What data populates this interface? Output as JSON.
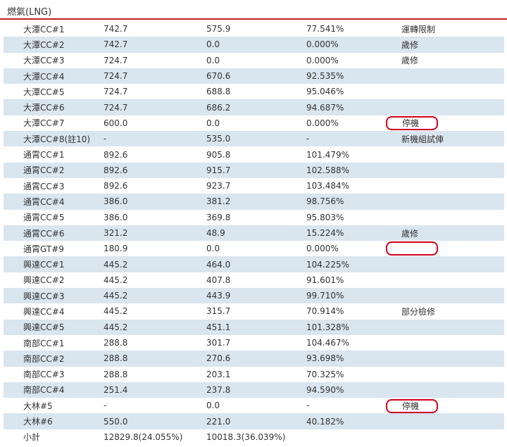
{
  "section_title": "燃氣(LNG)",
  "accent_color": "#c41e24",
  "alt_row_color": "#d9e5ef",
  "highlight_color": "#d0021b",
  "rows": [
    {
      "unit": "大潭CC#1",
      "capacity": "742.7",
      "output": "575.9",
      "ratio": "77.541%",
      "note": "運轉限制",
      "highlight": false
    },
    {
      "unit": "大潭CC#2",
      "capacity": "742.7",
      "output": "0.0",
      "ratio": "0.000%",
      "note": "歲修",
      "highlight": false
    },
    {
      "unit": "大潭CC#3",
      "capacity": "724.7",
      "output": "0.0",
      "ratio": "0.000%",
      "note": "歲修",
      "highlight": false
    },
    {
      "unit": "大潭CC#4",
      "capacity": "724.7",
      "output": "670.6",
      "ratio": "92.535%",
      "note": "",
      "highlight": false
    },
    {
      "unit": "大潭CC#5",
      "capacity": "724.7",
      "output": "688.8",
      "ratio": "95.046%",
      "note": "",
      "highlight": false
    },
    {
      "unit": "大潭CC#6",
      "capacity": "724.7",
      "output": "686.2",
      "ratio": "94.687%",
      "note": "",
      "highlight": false
    },
    {
      "unit": "大潭CC#7",
      "capacity": "600.0",
      "output": "0.0",
      "ratio": "0.000%",
      "note": "停機",
      "highlight": true
    },
    {
      "unit": "大潭CC#8(註10)",
      "capacity": "-",
      "output": "535.0",
      "ratio": "-",
      "note": "新機組試俥",
      "highlight": false
    },
    {
      "unit": "通霄CC#1",
      "capacity": "892.6",
      "output": "905.8",
      "ratio": "101.479%",
      "note": "",
      "highlight": false
    },
    {
      "unit": "通霄CC#2",
      "capacity": "892.6",
      "output": "915.7",
      "ratio": "102.588%",
      "note": "",
      "highlight": false
    },
    {
      "unit": "通霄CC#3",
      "capacity": "892.6",
      "output": "923.7",
      "ratio": "103.484%",
      "note": "",
      "highlight": false
    },
    {
      "unit": "通霄CC#4",
      "capacity": "386.0",
      "output": "381.2",
      "ratio": "98.756%",
      "note": "",
      "highlight": false
    },
    {
      "unit": "通霄CC#5",
      "capacity": "386.0",
      "output": "369.8",
      "ratio": "95.803%",
      "note": "",
      "highlight": false
    },
    {
      "unit": "通霄CC#6",
      "capacity": "321.2",
      "output": "48.9",
      "ratio": "15.224%",
      "note": "歲修",
      "highlight": false
    },
    {
      "unit": "通霄GT#9",
      "capacity": "180.9",
      "output": "0.0",
      "ratio": "0.000%",
      "note": "",
      "highlight": true
    },
    {
      "unit": "興達CC#1",
      "capacity": "445.2",
      "output": "464.0",
      "ratio": "104.225%",
      "note": "",
      "highlight": false
    },
    {
      "unit": "興達CC#2",
      "capacity": "445.2",
      "output": "407.8",
      "ratio": "91.601%",
      "note": "",
      "highlight": false
    },
    {
      "unit": "興達CC#3",
      "capacity": "445.2",
      "output": "443.9",
      "ratio": "99.710%",
      "note": "",
      "highlight": false
    },
    {
      "unit": "興達CC#4",
      "capacity": "445.2",
      "output": "315.7",
      "ratio": "70.914%",
      "note": "部分檢修",
      "highlight": false
    },
    {
      "unit": "興達CC#5",
      "capacity": "445.2",
      "output": "451.1",
      "ratio": "101.328%",
      "note": "",
      "highlight": false
    },
    {
      "unit": "南部CC#1",
      "capacity": "288.8",
      "output": "301.7",
      "ratio": "104.467%",
      "note": "",
      "highlight": false
    },
    {
      "unit": "南部CC#2",
      "capacity": "288.8",
      "output": "270.6",
      "ratio": "93.698%",
      "note": "",
      "highlight": false
    },
    {
      "unit": "南部CC#3",
      "capacity": "288.8",
      "output": "203.1",
      "ratio": "70.325%",
      "note": "",
      "highlight": false
    },
    {
      "unit": "南部CC#4",
      "capacity": "251.4",
      "output": "237.8",
      "ratio": "94.590%",
      "note": "",
      "highlight": false
    },
    {
      "unit": "大林#5",
      "capacity": "-",
      "output": "0.0",
      "ratio": "-",
      "note": "停機",
      "highlight": true
    },
    {
      "unit": "大林#6",
      "capacity": "550.0",
      "output": "221.0",
      "ratio": "40.182%",
      "note": "",
      "highlight": false
    }
  ],
  "subtotal": {
    "label": "小計",
    "capacity": "12829.8(24.055%)",
    "output": "10018.3(36.039%)"
  }
}
